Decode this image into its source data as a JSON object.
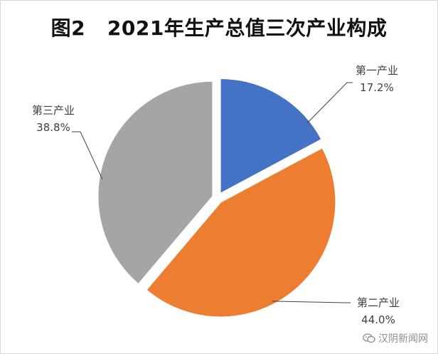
{
  "chart_data": {
    "type": "pie",
    "title": "图2   2021年生产总值三次产业构成",
    "slices": [
      {
        "label": "第一产业",
        "value": 17.2,
        "value_label": "17.2%",
        "color": "#4472C4"
      },
      {
        "label": "第二产业",
        "value": 44.0,
        "value_label": "44.0%",
        "color": "#ED7D31"
      },
      {
        "label": "第三产业",
        "value": 38.8,
        "value_label": "38.8%",
        "color": "#A5A5A5"
      }
    ],
    "start": "12 o'clock",
    "direction": "clockwise",
    "exploded": true,
    "legend": "none",
    "data_labels": "category and percentage with leader lines"
  },
  "watermark": {
    "icon": "wechat-icon",
    "text": "汉阴新闻网"
  }
}
